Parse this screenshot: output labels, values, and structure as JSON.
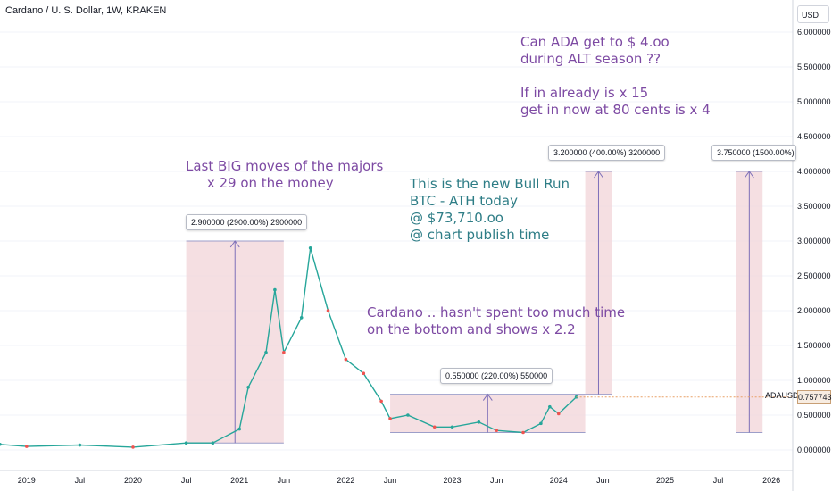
{
  "header": {
    "title": "Cardano / U. S. Dollar, 1W, KRAKEN",
    "currency": "USD"
  },
  "symbol": "ADAUSD",
  "last_price": "0.757743",
  "colors": {
    "up": "#26a69a",
    "down": "#ef5350",
    "box_fill": "#f2d4d8",
    "box_edge": "#9c9ec9",
    "annotation_purple": "#7d4aa3",
    "annotation_teal": "#2e7d86",
    "price_line": "#e9a066"
  },
  "annotations": {
    "ada_question": "Can ADA get to $ 4.oo\nduring ALT season ??",
    "returns": "If in already is x 15\nget in now at 80 cents is x 4",
    "majors": "Last BIG moves of the majors\n     x 29 on the money",
    "bull_run": "This is the new Bull Run\nBTC - ATH today\n@ $73,710.oo\n@ chart publish time",
    "cardano": "Cardano .. hasn't spent too much time\non the bottom and shows x 2.2"
  },
  "chart_data": {
    "type": "line",
    "title": "Cardano / U. S. Dollar, 1W, KRAKEN",
    "series": [
      {
        "x": [
          "2018-10",
          "2019-01",
          "2019-07",
          "2020-01",
          "2020-07",
          "2020-10",
          "2021-01",
          "2021-02",
          "2021-04",
          "2021-05",
          "2021-06",
          "2021-08",
          "2021-09",
          "2021-11",
          "2022-01",
          "2022-03",
          "2022-05",
          "2022-06",
          "2022-08",
          "2022-11",
          "2023-01",
          "2023-04",
          "2023-06",
          "2023-09",
          "2023-11",
          "2023-12",
          "2024-01",
          "2024-03"
        ],
        "values": [
          0.08,
          0.05,
          0.07,
          0.04,
          0.1,
          0.1,
          0.3,
          0.9,
          1.4,
          2.3,
          1.4,
          1.9,
          2.9,
          2.0,
          1.3,
          1.1,
          0.7,
          0.45,
          0.5,
          0.33,
          0.33,
          0.4,
          0.28,
          0.25,
          0.38,
          0.62,
          0.52,
          0.76
        ]
      }
    ],
    "x_tick_labels": [
      "2019",
      "Jul",
      "2020",
      "Jul",
      "2021",
      "Jun",
      "2022",
      "Jun",
      "2023",
      "Jun",
      "2024",
      "Jun",
      "2025",
      "Jul",
      "2026"
    ],
    "y_tick_labels": [
      "6.000000",
      "5.500000",
      "5.000000",
      "4.500000",
      "4.000000",
      "3.500000",
      "3.000000",
      "2.500000",
      "2.000000",
      "1.500000",
      "1.000000",
      "0.500000",
      "0.000000"
    ],
    "ylim": [
      0,
      6
    ],
    "measurements": [
      {
        "label": "2.900000 (2900.00%) 2900000",
        "x_start": "2020-07",
        "x_end": "2021-06",
        "y_from": 0.1,
        "y_to": 3.0
      },
      {
        "label": "0.550000 (220.00%) 550000",
        "x_start": "2022-06",
        "x_end": "2024-04",
        "y_from": 0.25,
        "y_to": 0.8
      },
      {
        "label": "3.200000 (400.00%) 3200000",
        "x_start": "2024-04",
        "x_end": "2024-07",
        "y_from": 0.8,
        "y_to": 4.0
      },
      {
        "label": "3.750000 (1500.00%) 3750000",
        "x_start": "2025-09",
        "x_end": "2025-12",
        "y_from": 0.25,
        "y_to": 4.0
      }
    ]
  }
}
